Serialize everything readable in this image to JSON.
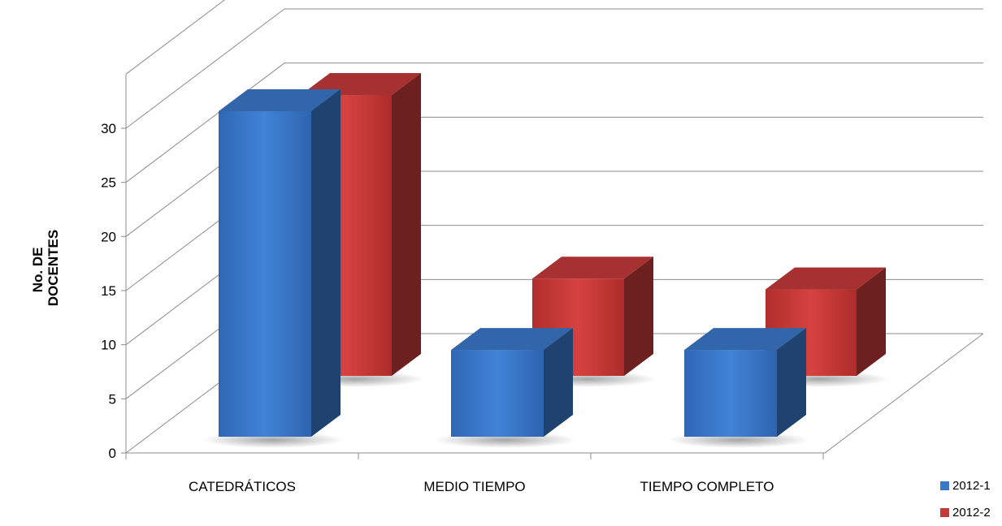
{
  "chart_data": {
    "type": "bar",
    "title": "",
    "xlabel": "",
    "ylabel_lines": [
      "No. DE",
      "DOCENTES"
    ],
    "categories": [
      "CATEDRÁTICOS",
      "MEDIO TIEMPO",
      "TIEMPO COMPLETO"
    ],
    "series": [
      {
        "name": "2012-1",
        "values": [
          30,
          8,
          8
        ],
        "color": "#3a78c9"
      },
      {
        "name": "2012-2",
        "values": [
          26,
          9,
          8
        ],
        "color": "#c53a38"
      }
    ],
    "ylim": [
      0,
      30
    ],
    "yticks": [
      "0",
      "5",
      "10",
      "15",
      "20",
      "25",
      "30"
    ],
    "grid": true,
    "legend": "bottom-right",
    "style": "3d-clustered-column"
  }
}
